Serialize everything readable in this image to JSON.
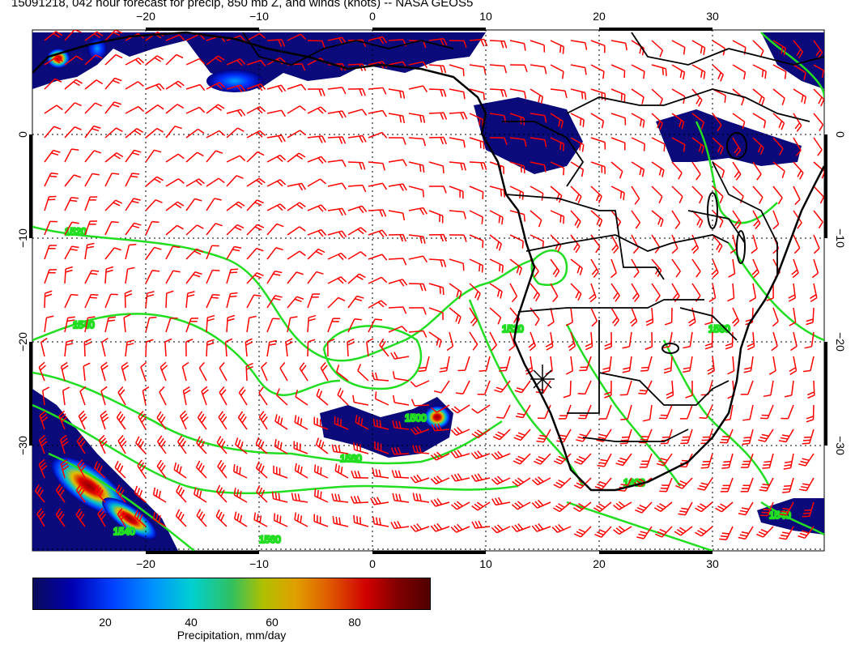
{
  "title": "15091218, 042 hour forecast for precip, 850 mb Z, and winds (knots) -- NASA GEOS5",
  "map": {
    "lon_range": [
      -30,
      40
    ],
    "lat_range": [
      -40,
      10
    ],
    "lon_ticks": [
      "−20",
      "−10",
      "0",
      "10",
      "20",
      "30"
    ],
    "lat_ticks": [
      "0",
      "−10",
      "−20",
      "−30"
    ],
    "colors": {
      "contour": "#22dd22",
      "barb": "#ff0000",
      "coast": "#000000",
      "precip_low": "#000080",
      "precip_mid": "#00c8ff",
      "precip_high": "#cc0000"
    },
    "contour_labels": [
      "1520",
      "1540",
      "1560",
      "1580",
      "1600",
      "1500"
    ],
    "marker": {
      "symbol": "∗",
      "lon": 15,
      "lat": -23
    }
  },
  "colorbar": {
    "ticks": [
      "20",
      "40",
      "60",
      "80"
    ],
    "label": "Precipitation, mm/day"
  }
}
